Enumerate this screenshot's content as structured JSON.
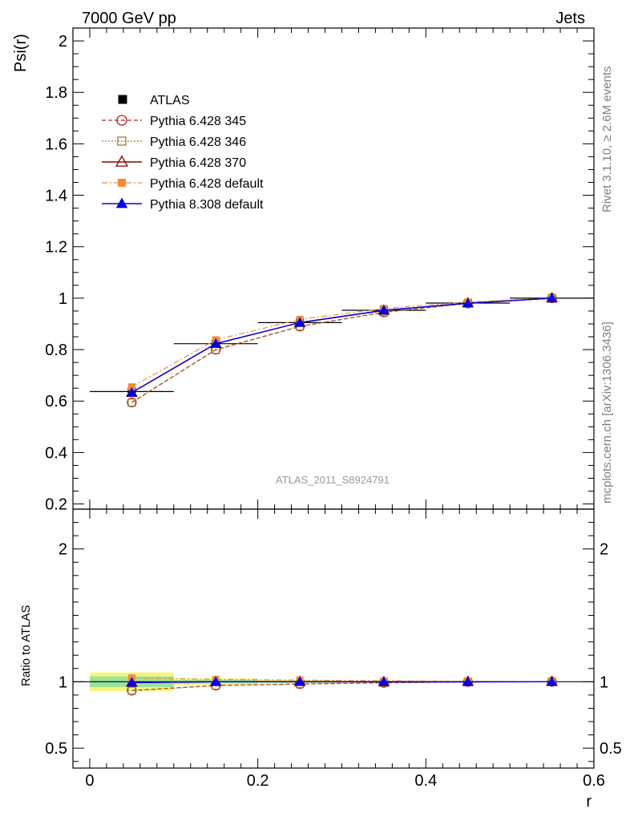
{
  "header": {
    "left": "7000 GeV pp",
    "right": "Jets",
    "side_top": "Rivet 3.1.10, ≥ 2.6M events",
    "side_bottom": "mcplots.cern.ch [arXiv:1306.3436]",
    "watermark": "ATLAS_2011_S8924791"
  },
  "chart_data": [
    {
      "type": "line",
      "panel": "main",
      "ylabel": "Psi(r)",
      "xlabel": "",
      "xlim": [
        -0.02,
        0.6
      ],
      "ylim": [
        0.18,
        2.05
      ],
      "yticks": [
        0.2,
        0.4,
        0.6,
        0.8,
        1,
        1.2,
        1.4,
        1.6,
        1.8,
        2
      ],
      "ytick_labels": [
        "0.2",
        "0.4",
        "0.6",
        "0.8",
        "1",
        "1.2",
        "1.4",
        "1.6",
        "1.8",
        "2"
      ],
      "x": [
        0.05,
        0.15,
        0.25,
        0.35,
        0.45,
        0.55
      ],
      "series": [
        {
          "name": "ATLAS",
          "color": "#000000",
          "values": [
            0.637,
            0.823,
            0.905,
            0.953,
            0.981,
            1.0
          ],
          "xerr": 0.05
        },
        {
          "name": "Pythia 6.428 345",
          "color": "#b22222",
          "values": [
            0.595,
            0.8,
            0.89,
            0.945,
            0.98,
            1.0
          ]
        },
        {
          "name": "Pythia 6.428 346",
          "color": "#9a7b3a",
          "values": [
            0.594,
            0.799,
            0.89,
            0.945,
            0.98,
            1.0
          ]
        },
        {
          "name": "Pythia 6.428 370",
          "color": "#8b0000",
          "values": [
            0.633,
            0.823,
            0.905,
            0.952,
            0.981,
            1.0
          ]
        },
        {
          "name": "Pythia 6.428 default",
          "color": "#f28c3a",
          "values": [
            0.655,
            0.838,
            0.917,
            0.96,
            0.985,
            1.0
          ]
        },
        {
          "name": "Pythia 8.308 default",
          "color": "#0000e0",
          "values": [
            0.633,
            0.823,
            0.905,
            0.953,
            0.98,
            1.0
          ]
        }
      ]
    },
    {
      "type": "line",
      "panel": "ratio",
      "ylabel": "Ratio to ATLAS",
      "xlabel": "r",
      "xlim": [
        -0.02,
        0.6
      ],
      "ylim": [
        0.35,
        2.3
      ],
      "yticks": [
        0.5,
        1,
        2
      ],
      "ytick_labels": [
        "0.5",
        "1",
        "2"
      ],
      "xticks": [
        0,
        0.2,
        0.4,
        0.6
      ],
      "xtick_labels": [
        "0",
        "0.2",
        "0.4",
        "0.6"
      ],
      "x": [
        0.05,
        0.15,
        0.25,
        0.35,
        0.45,
        0.55
      ],
      "band_inner": [
        0.04,
        0.013,
        0.007,
        0.004,
        0.003,
        0.001
      ],
      "band_outer": [
        0.07,
        0.025,
        0.014,
        0.008,
        0.005,
        0.002
      ],
      "series": [
        {
          "name": "Pythia 6.428 345",
          "values": [
            0.934,
            0.972,
            0.983,
            0.992,
            0.999,
            1.0
          ]
        },
        {
          "name": "Pythia 6.428 346",
          "values": [
            0.933,
            0.971,
            0.983,
            0.992,
            0.999,
            1.0
          ]
        },
        {
          "name": "Pythia 6.428 370",
          "values": [
            0.994,
            1.0,
            1.0,
            0.999,
            1.0,
            1.0
          ]
        },
        {
          "name": "Pythia 6.428 default",
          "values": [
            1.028,
            1.018,
            1.013,
            1.007,
            1.004,
            1.0
          ]
        },
        {
          "name": "Pythia 8.308 default",
          "values": [
            0.994,
            1.0,
            1.0,
            1.0,
            0.999,
            1.0
          ]
        }
      ]
    }
  ]
}
